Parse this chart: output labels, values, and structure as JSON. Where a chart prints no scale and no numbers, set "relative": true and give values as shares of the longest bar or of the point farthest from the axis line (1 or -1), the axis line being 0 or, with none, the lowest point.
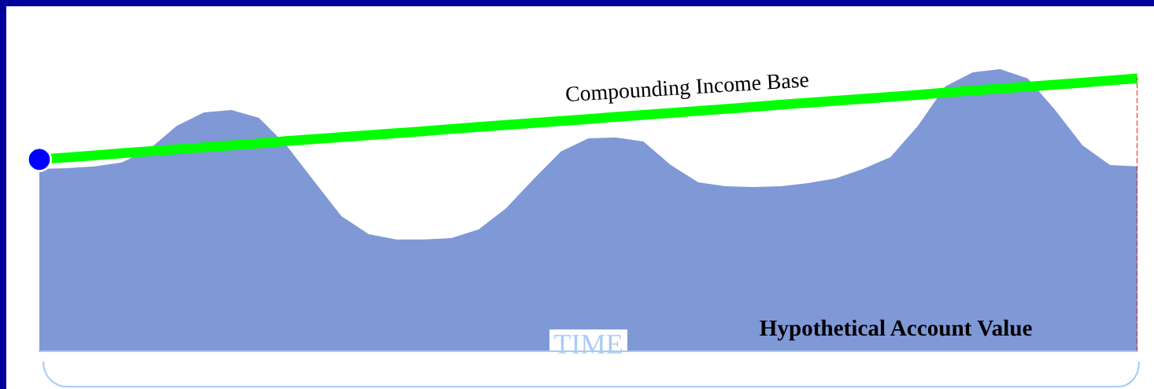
{
  "chart_data": {
    "type": "area",
    "relative": true,
    "xlabel": "TIME",
    "categories": [
      null,
      null,
      null,
      null,
      null,
      null,
      null,
      null,
      null,
      null,
      null,
      null,
      null,
      null,
      null,
      null,
      null,
      null,
      null,
      null,
      null,
      null,
      null,
      null,
      null,
      null,
      null,
      null,
      null,
      null,
      null,
      null,
      null,
      null,
      null,
      null,
      null,
      null,
      null,
      null,
      null
    ],
    "series": [
      {
        "color": "#7f98d6",
        "values": [
          0.646,
          0.649,
          0.655,
          0.669,
          0.716,
          0.799,
          0.847,
          0.855,
          0.827,
          0.73,
          0.604,
          0.479,
          0.415,
          0.396,
          0.396,
          0.401,
          0.432,
          0.507,
          0.61,
          0.708,
          0.755,
          0.758,
          0.744,
          0.66,
          0.599,
          0.585,
          0.582,
          0.585,
          0.596,
          0.613,
          0.646,
          0.688,
          0.799,
          0.939,
          0.989,
          1.0,
          0.967,
          0.855,
          0.73,
          0.66,
          0.655
        ]
      },
      {
        "type": "line",
        "color": "#00ff00",
        "values": [
          0.68,
          0.687,
          0.694,
          0.702,
          0.709,
          0.716,
          0.723,
          0.73,
          0.737,
          0.745,
          0.752,
          0.759,
          0.766,
          0.773,
          0.78,
          0.788,
          0.795,
          0.802,
          0.809,
          0.816,
          0.823,
          0.831,
          0.838,
          0.845,
          0.852,
          0.859,
          0.866,
          0.874,
          0.881,
          0.888,
          0.895,
          0.902,
          0.909,
          0.917,
          0.924,
          0.931,
          0.938,
          0.945,
          0.952,
          0.96,
          0.967
        ]
      }
    ],
    "annotations": [
      "Compounding Income Base",
      "Hypothetical Account Value"
    ],
    "grid": false,
    "legend": false,
    "tick_labels": false
  }
}
